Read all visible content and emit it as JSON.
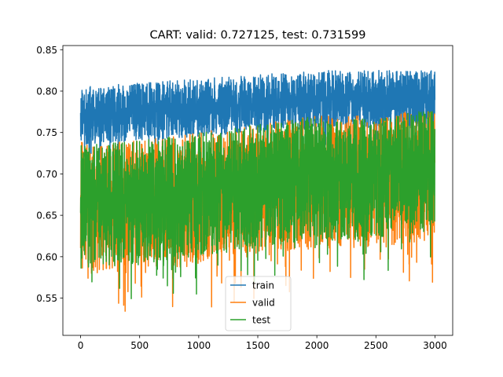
{
  "chart_data": {
    "type": "line",
    "title": "CART: valid: 0.727125, test: 0.731599",
    "xlabel": "",
    "ylabel": "",
    "xlim": [
      -150,
      3150
    ],
    "ylim": [
      0.505,
      0.855
    ],
    "xticks": [
      0,
      500,
      1000,
      1500,
      2000,
      2500,
      3000
    ],
    "yticks": [
      0.55,
      0.6,
      0.65,
      0.7,
      0.75,
      0.8,
      0.85
    ],
    "ytick_labels": [
      "0.55",
      "0.60",
      "0.65",
      "0.70",
      "0.75",
      "0.80",
      "0.85"
    ],
    "xtick_labels": [
      "0",
      "500",
      "1000",
      "1500",
      "2000",
      "2500",
      "3000"
    ],
    "grid": false,
    "legend_position": "bottom-center",
    "n_points": 3000,
    "series": [
      {
        "name": "train",
        "color": "#1f77b4",
        "trend": [
          [
            0,
            0.77
          ],
          [
            500,
            0.775
          ],
          [
            1000,
            0.78
          ],
          [
            1500,
            0.785
          ],
          [
            2000,
            0.79
          ],
          [
            2500,
            0.79
          ],
          [
            3000,
            0.79
          ]
        ],
        "spread_low": 0.035,
        "spread_high": 0.035,
        "min": 0.71,
        "max": 0.837
      },
      {
        "name": "valid",
        "color": "#ff7f0e",
        "trend": [
          [
            0,
            0.67
          ],
          [
            500,
            0.67
          ],
          [
            1000,
            0.68
          ],
          [
            1500,
            0.69
          ],
          [
            2000,
            0.7
          ],
          [
            2500,
            0.7
          ],
          [
            3000,
            0.71
          ]
        ],
        "spread_low": 0.09,
        "spread_high": 0.07,
        "min": 0.52,
        "max": 0.775
      },
      {
        "name": "test",
        "color": "#2ca02c",
        "trend": [
          [
            0,
            0.665
          ],
          [
            500,
            0.67
          ],
          [
            1000,
            0.68
          ],
          [
            1500,
            0.69
          ],
          [
            2000,
            0.7
          ],
          [
            2500,
            0.7
          ],
          [
            3000,
            0.71
          ]
        ],
        "spread_low": 0.08,
        "spread_high": 0.07,
        "min": 0.535,
        "max": 0.775
      }
    ]
  }
}
